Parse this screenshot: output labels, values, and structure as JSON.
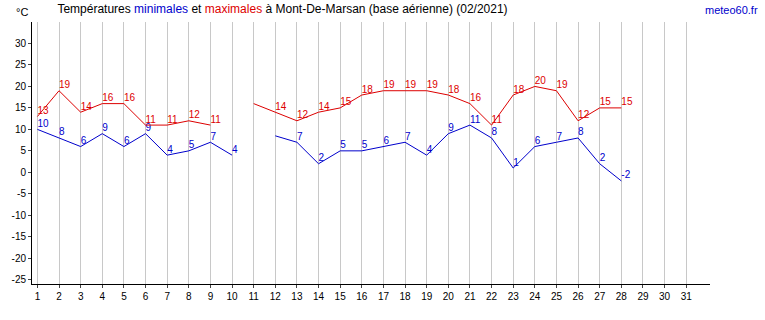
{
  "chart_data": {
    "type": "line",
    "title": "Températures minimales et maximales à Mont-De-Marsan (base aérienne) (02/2021)",
    "y_label": "°C",
    "source": "meteo60.fr",
    "x": [
      1,
      2,
      3,
      4,
      5,
      6,
      7,
      8,
      9,
      10,
      11,
      12,
      13,
      14,
      15,
      16,
      17,
      18,
      19,
      20,
      21,
      22,
      23,
      24,
      25,
      26,
      27,
      28,
      29,
      30,
      31
    ],
    "series": [
      {
        "name": "minimales",
        "color": "#0000cc",
        "values": [
          10,
          8,
          6,
          9,
          6,
          9,
          4,
          5,
          7,
          4,
          null,
          8.5,
          7,
          2,
          5,
          5,
          6,
          7,
          4,
          9,
          11,
          8,
          1,
          6,
          7,
          8,
          2,
          -2,
          null,
          null,
          null
        ],
        "value_labels": [
          "10",
          "8",
          "6",
          "9",
          "6",
          "9",
          "4",
          "5",
          "7",
          "4",
          null,
          null,
          "7",
          "2",
          "5",
          "5",
          "6",
          "7",
          "4",
          "9",
          "11",
          "8",
          "1",
          "6",
          "7",
          "8",
          "2",
          "-2",
          null,
          null,
          null
        ]
      },
      {
        "name": "maximales",
        "color": "#dd0000",
        "values": [
          13,
          19,
          14,
          16,
          16,
          11,
          11,
          12,
          11,
          null,
          16,
          14,
          12,
          14,
          15,
          18,
          19,
          19,
          19,
          18,
          16,
          11,
          18,
          20,
          19,
          12,
          15,
          15,
          null,
          null,
          null
        ],
        "value_labels": [
          "13",
          "19",
          "14",
          "16",
          "16",
          "11",
          "11",
          "12",
          "11",
          null,
          null,
          "14",
          "12",
          "14",
          "15",
          "18",
          "19",
          "19",
          "19",
          "18",
          "16",
          "11",
          "18",
          "20",
          "19",
          "12",
          "15",
          "15",
          null,
          null,
          null
        ]
      }
    ],
    "xlim": [
      0.75,
      32.1
    ],
    "xticks": [
      1,
      2,
      3,
      4,
      5,
      6,
      7,
      8,
      9,
      10,
      11,
      12,
      13,
      14,
      15,
      16,
      17,
      18,
      19,
      20,
      21,
      22,
      23,
      24,
      25,
      26,
      27,
      28,
      29,
      30,
      31
    ],
    "ylim": [
      -26,
      35
    ],
    "yticks": [
      -25,
      -20,
      -15,
      -10,
      -5,
      0,
      5,
      10,
      15,
      20,
      25,
      30
    ],
    "grid": true,
    "data_labels": true
  }
}
